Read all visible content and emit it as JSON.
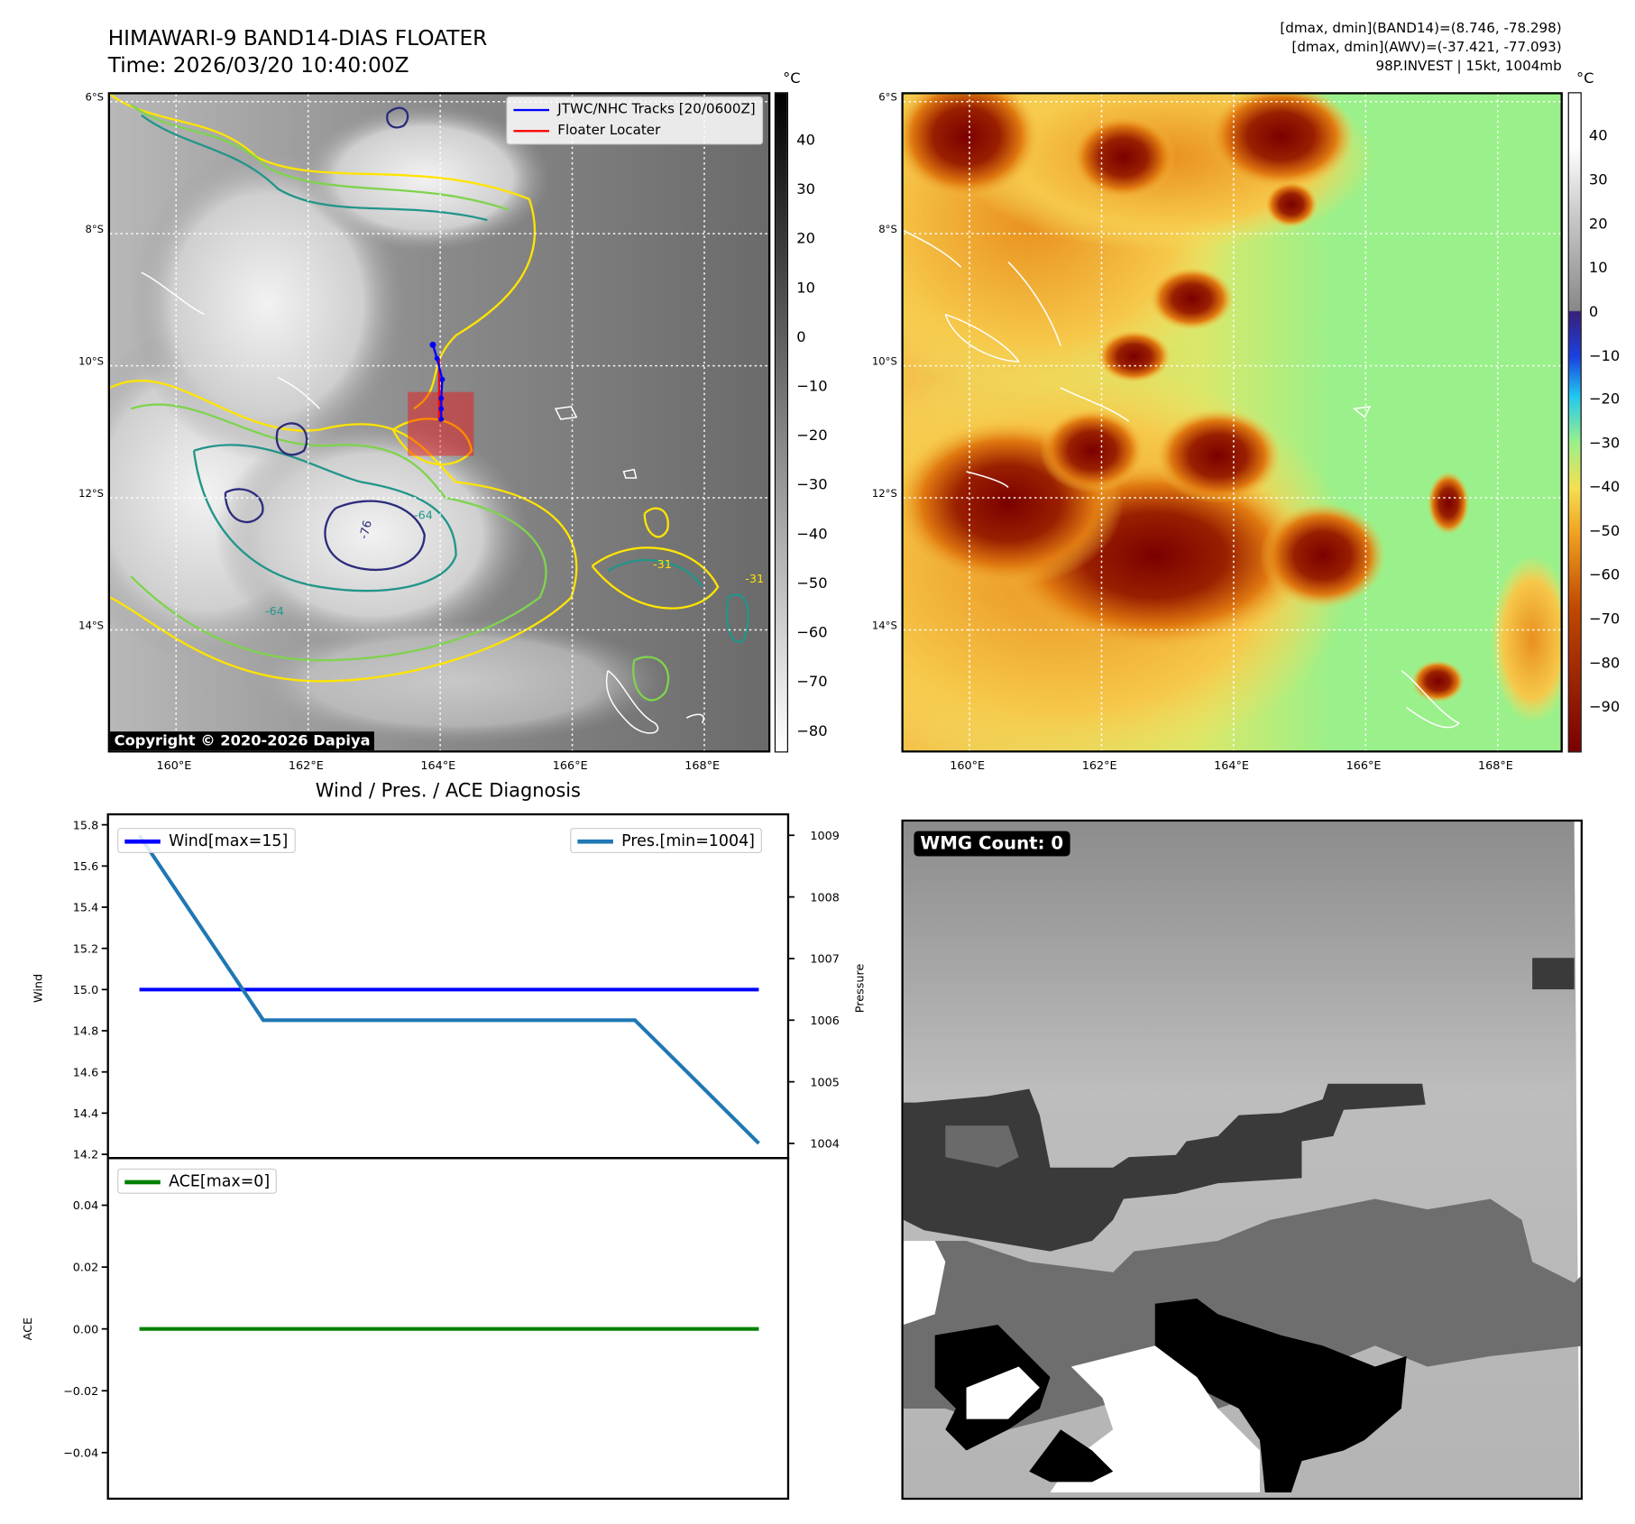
{
  "header": {
    "title": "HIMAWARI-9 BAND14-DIAS FLOATER",
    "time": "Time: 2026/03/20 10:40:00Z",
    "info": [
      "[dmax, dmin](BAND14)=(8.746, -78.298)",
      "[dmax, dmin](AWV)=(-37.421, -77.093)",
      "98P.INVEST | 15kt, 1004mb"
    ]
  },
  "map_left": {
    "lat_labels": [
      "6°S",
      "8°S",
      "10°S",
      "12°S",
      "14°S"
    ],
    "lon_labels": [
      "160°E",
      "162°E",
      "164°E",
      "166°E",
      "168°E"
    ],
    "legend": [
      "JTWC/NHC Tracks [20/0600Z]",
      "Floater Locater"
    ],
    "contour_labels": [
      "-76",
      "-64",
      "-64",
      "-31",
      "-31"
    ],
    "copyright": "Copyright © 2020-2026 Dapiya",
    "colorbar": {
      "unit": "°C",
      "ticks": [
        "40",
        "30",
        "20",
        "10",
        "0",
        "−10",
        "−20",
        "−30",
        "−40",
        "−50",
        "−60",
        "−70",
        "−80"
      ]
    },
    "colors": {
      "track": "#0000ff",
      "locater": "#ff0000"
    }
  },
  "map_right": {
    "lat_labels": [
      "6°S",
      "8°S",
      "10°S",
      "12°S",
      "14°S"
    ],
    "lon_labels": [
      "160°E",
      "162°E",
      "164°E",
      "166°E",
      "168°E"
    ],
    "colorbar": {
      "unit": "°C",
      "ticks": [
        "40",
        "30",
        "20",
        "10",
        "0",
        "−10",
        "−20",
        "−30",
        "−40",
        "−50",
        "−60",
        "−70",
        "−80",
        "−90"
      ]
    }
  },
  "wmg": {
    "label": "WMG Count: 0"
  },
  "chart_data": {
    "type": "line",
    "title": "Wind / Pres. / ACE Diagnosis",
    "x": [
      0,
      1,
      2,
      3,
      4,
      5
    ],
    "panels": [
      {
        "ylabel": "Wind",
        "ylim": [
          14.2,
          15.8
        ],
        "yticks": [
          "15.8",
          "15.6",
          "15.4",
          "15.2",
          "15.0",
          "14.8",
          "14.6",
          "14.4",
          "14.2"
        ],
        "series": [
          {
            "name": "Wind[max=15]",
            "color": "#0000ff",
            "values": [
              15,
              15,
              15,
              15,
              15,
              15
            ]
          }
        ],
        "legend": "top-left",
        "y2label": "Pressure",
        "y2lim": [
          1003.93,
          1009.1
        ],
        "y2ticks": [
          "1009",
          "1008",
          "1007",
          "1006",
          "1005",
          "1004"
        ],
        "series2": [
          {
            "name": "Pres.[min=1004]",
            "color": "#1f77b4",
            "values": [
              1009,
              1006,
              1006,
              1006,
              1006,
              1004
            ]
          }
        ],
        "legend2": "top-right"
      },
      {
        "ylabel": "ACE",
        "ylim": [
          -0.055,
          0.055
        ],
        "yticks": [
          "0.04",
          "0.02",
          "0.00",
          "−0.02",
          "−0.04"
        ],
        "series": [
          {
            "name": "ACE[max=0]",
            "color": "#008000",
            "values": [
              0,
              0,
              0,
              0,
              0,
              0
            ]
          }
        ],
        "legend": "top-left"
      }
    ]
  }
}
